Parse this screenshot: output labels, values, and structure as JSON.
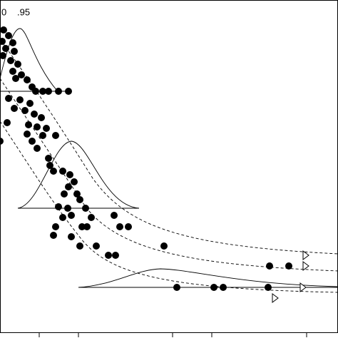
{
  "chart_data": {
    "type": "scatter",
    "annotations": [
      "0",
      ".95"
    ],
    "xlim": [
      0,
      474
    ],
    "ylim": [
      474,
      0
    ],
    "xticks": [
      55,
      110,
      242,
      297,
      430
    ],
    "series": [
      {
        "marker": "circle",
        "color": "#000000",
        "x": [
          5,
          12,
          3,
          18,
          8,
          20,
          4,
          15,
          25,
          18,
          30,
          22,
          38,
          45,
          50,
          60,
          68,
          82,
          96,
          12,
          28,
          42,
          20,
          35,
          48,
          58,
          10,
          40,
          52,
          65,
          38,
          60,
          78,
          45,
          52,
          0,
          68,
          75,
          70,
          88,
          98,
          104,
          96,
          108,
          90,
          112,
          82,
          95,
          120,
          100,
          88,
          128,
          160,
          78,
          115,
          122,
          168,
          180,
          75,
          100,
          112,
          135,
          152,
          162,
          230,
          378,
          405,
          248,
          300,
          313,
          376
        ],
        "y": [
          42,
          50,
          58,
          60,
          68,
          72,
          78,
          85,
          90,
          100,
          105,
          110,
          112,
          122,
          128,
          128,
          128,
          128,
          128,
          138,
          140,
          145,
          152,
          155,
          160,
          165,
          172,
          175,
          178,
          180,
          188,
          190,
          190,
          198,
          208,
          198,
          222,
          240,
          232,
          240,
          245,
          255,
          262,
          272,
          272,
          280,
          290,
          292,
          292,
          302,
          305,
          305,
          302,
          318,
          318,
          318,
          318,
          318,
          330,
          332,
          345,
          345,
          358,
          358,
          345,
          373,
          373,
          403,
          403,
          403,
          403
        ]
      },
      {
        "marker": "triangle",
        "color": "#000000",
        "x": [
          428,
          428,
          424,
          385
        ],
        "y": [
          358,
          373,
          403,
          418
        ]
      }
    ]
  }
}
